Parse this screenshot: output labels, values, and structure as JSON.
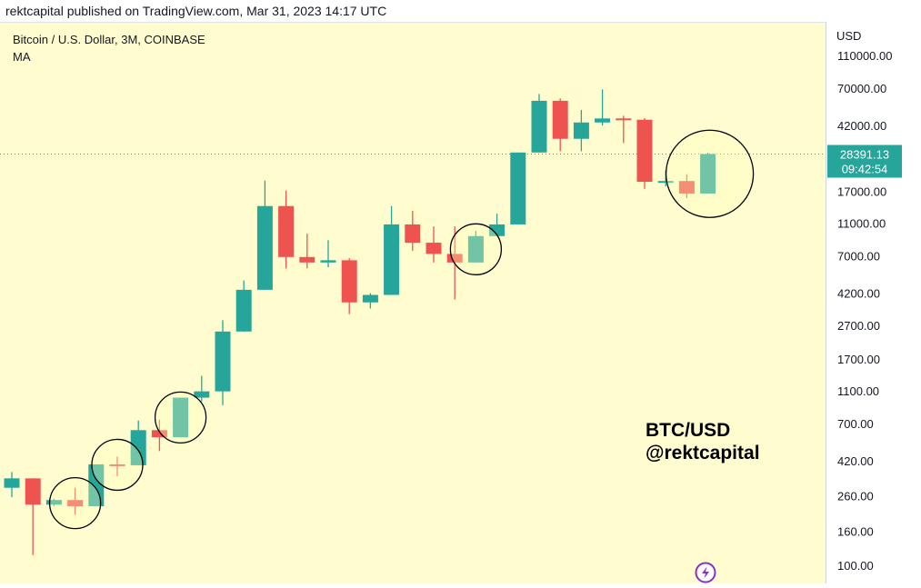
{
  "header": {
    "text": "rektcapital published on TradingView.com, Mar 31, 2023 14:17 UTC"
  },
  "chart_data": {
    "type": "candlestick",
    "symbol_line": "Bitcoin / U.S. Dollar, 3M, COINBASE",
    "indicator": "MA",
    "axis_currency": "USD",
    "scale": "log",
    "ylim": [
      90,
      120000
    ],
    "y_ticks": [
      110000,
      70000,
      42000,
      17000,
      11000,
      7000,
      4200,
      2700,
      1700,
      1100,
      700,
      420,
      260,
      160,
      100
    ],
    "y_tick_labels": [
      "110000.00",
      "70000.00",
      "42000.00",
      "17000.00",
      "11000.00",
      "7000.00",
      "4200.00",
      "2700.00",
      "1700.00",
      "1100.00",
      "700.00",
      "420.00",
      "260.00",
      "160.00",
      "100.00"
    ],
    "current_price": {
      "value": 28391.13,
      "label": "28391.13",
      "countdown": "09:42:54"
    },
    "candles": [
      {
        "o": 290,
        "h": 360,
        "l": 255,
        "c": 330
      },
      {
        "o": 330,
        "h": 330,
        "l": 115,
        "c": 230
      },
      {
        "o": 230,
        "h": 250,
        "l": 225,
        "c": 245
      },
      {
        "o": 245,
        "h": 290,
        "l": 200,
        "c": 225
      },
      {
        "o": 225,
        "h": 400,
        "l": 225,
        "c": 400
      },
      {
        "o": 400,
        "h": 445,
        "l": 340,
        "c": 395
      },
      {
        "o": 395,
        "h": 730,
        "l": 395,
        "c": 640
      },
      {
        "o": 640,
        "h": 740,
        "l": 480,
        "c": 580
      },
      {
        "o": 580,
        "h": 1000,
        "l": 580,
        "c": 1000
      },
      {
        "o": 1000,
        "h": 1350,
        "l": 950,
        "c": 1090
      },
      {
        "o": 1090,
        "h": 2900,
        "l": 900,
        "c": 2480
      },
      {
        "o": 2480,
        "h": 5000,
        "l": 2480,
        "c": 4400
      },
      {
        "o": 4400,
        "h": 19700,
        "l": 4400,
        "c": 13900
      },
      {
        "o": 13900,
        "h": 17200,
        "l": 5900,
        "c": 6900
      },
      {
        "o": 6900,
        "h": 9500,
        "l": 5900,
        "c": 6400
      },
      {
        "o": 6400,
        "h": 8700,
        "l": 6000,
        "c": 6600
      },
      {
        "o": 6600,
        "h": 6800,
        "l": 3150,
        "c": 3700
      },
      {
        "o": 3700,
        "h": 4200,
        "l": 3400,
        "c": 4100
      },
      {
        "o": 4100,
        "h": 13900,
        "l": 4100,
        "c": 10800
      },
      {
        "o": 10800,
        "h": 13000,
        "l": 7500,
        "c": 8400
      },
      {
        "o": 8400,
        "h": 10500,
        "l": 6400,
        "c": 7200
      },
      {
        "o": 7200,
        "h": 10500,
        "l": 3850,
        "c": 6400
      },
      {
        "o": 6400,
        "h": 9900,
        "l": 6400,
        "c": 9200
      },
      {
        "o": 9200,
        "h": 12500,
        "l": 9200,
        "c": 10800
      },
      {
        "o": 10800,
        "h": 29000,
        "l": 10800,
        "c": 29000
      },
      {
        "o": 29000,
        "h": 64800,
        "l": 29000,
        "c": 59000
      },
      {
        "o": 59000,
        "h": 61000,
        "l": 29500,
        "c": 35000
      },
      {
        "o": 35000,
        "h": 52000,
        "l": 29500,
        "c": 43800
      },
      {
        "o": 43800,
        "h": 69000,
        "l": 42000,
        "c": 46300
      },
      {
        "o": 46300,
        "h": 48000,
        "l": 33000,
        "c": 45500
      },
      {
        "o": 45500,
        "h": 46500,
        "l": 17600,
        "c": 19400
      },
      {
        "o": 19400,
        "h": 22700,
        "l": 18200,
        "c": 19600
      },
      {
        "o": 19600,
        "h": 21500,
        "l": 15500,
        "c": 16500
      },
      {
        "o": 16500,
        "h": 29000,
        "l": 16500,
        "c": 28391
      }
    ],
    "highlight_circles_at_candles": [
      3,
      5,
      8,
      22,
      33
    ],
    "annotation": {
      "line1": "BTC/USD",
      "line2": "@rektcapital"
    },
    "colors": {
      "up": "#26a69a",
      "down": "#ef5350",
      "background": "#fffdd0",
      "axis_bg": "#ffffff",
      "price_tag": "#26a69a",
      "lightning": "#8b2fc9"
    }
  }
}
